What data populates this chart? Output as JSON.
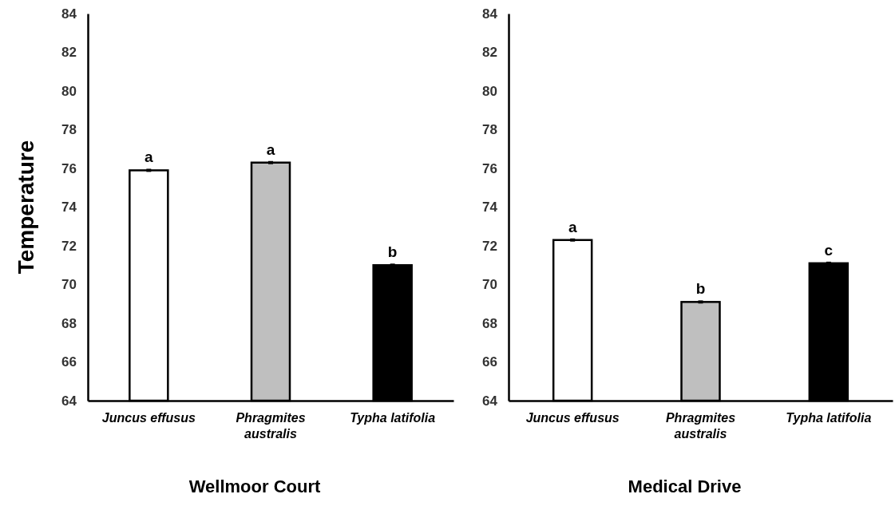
{
  "chart_data": [
    {
      "type": "bar",
      "xlabel": "Wellmoor Court",
      "ylabel": "Temperature",
      "categories": [
        "Juncus effusus",
        "Phragmites australis",
        "Typha latifolia"
      ],
      "values": [
        75.9,
        76.3,
        71.0
      ],
      "errors": [
        0.05,
        0.05,
        0.05
      ],
      "colors": [
        "#ffffff",
        "#bfbfbf",
        "#000000"
      ],
      "ylim": [
        64,
        84
      ],
      "yticks": [
        64,
        66,
        68,
        70,
        72,
        74,
        76,
        78,
        80,
        82,
        84
      ],
      "grid": false,
      "annotations": [
        {
          "text": "a",
          "x": "Juncus effusus",
          "y": 75.9
        },
        {
          "text": "a",
          "x": "Phragmites australis",
          "y": 76.3
        },
        {
          "text": "b",
          "x": "Typha latifolia",
          "y": 71.0
        }
      ]
    },
    {
      "type": "bar",
      "xlabel": "Medical Drive",
      "categories": [
        "Juncus effusus",
        "Phragmites australis",
        "Typha latifolia"
      ],
      "values": [
        72.3,
        69.1,
        71.1
      ],
      "errors": [
        0.05,
        0.05,
        0.05
      ],
      "colors": [
        "#ffffff",
        "#bfbfbf",
        "#000000"
      ],
      "ylim": [
        64,
        84
      ],
      "yticks": [
        64,
        66,
        68,
        70,
        72,
        74,
        76,
        78,
        80,
        82,
        84
      ],
      "grid": false,
      "annotations": [
        {
          "text": "a",
          "x": "Juncus effusus",
          "y": 72.3
        },
        {
          "text": "b",
          "x": "Phragmites australis",
          "y": 69.1
        },
        {
          "text": "c",
          "x": "Typha latifolia",
          "y": 71.1
        }
      ]
    }
  ]
}
